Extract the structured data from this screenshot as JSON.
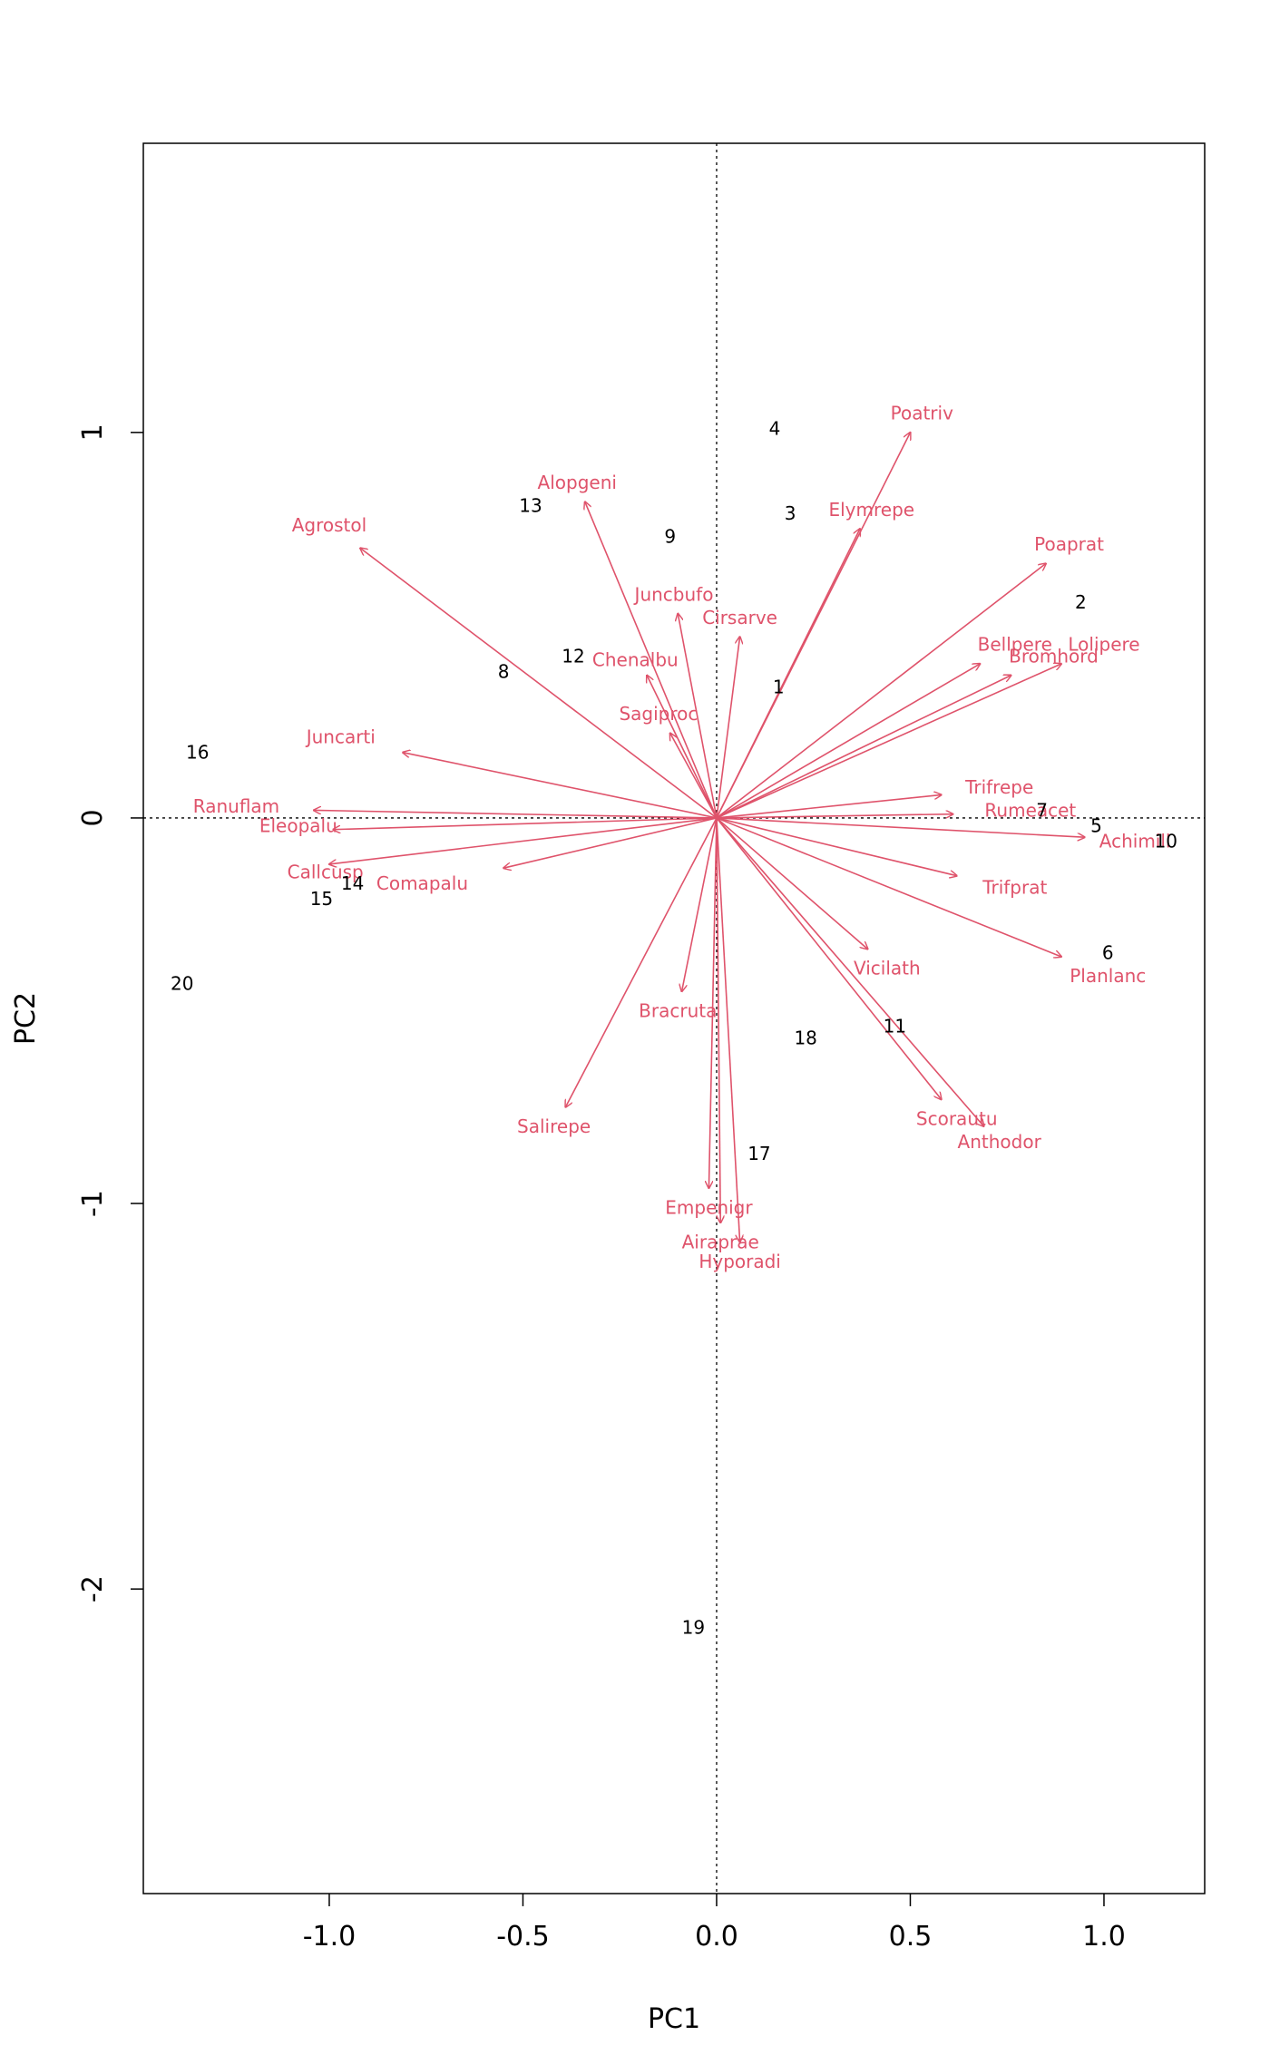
{
  "chart_data": {
    "type": "scatter",
    "subtype": "pca-biplot",
    "title": "",
    "xlabel": "PC1",
    "ylabel": "PC2",
    "xlim": [
      -1.48,
      1.26
    ],
    "ylim": [
      -2.79,
      1.75
    ],
    "xticks": [
      -1.0,
      -0.5,
      0.0,
      0.5,
      1.0
    ],
    "xtick_labels": [
      "-1.0",
      "-0.5",
      "0.0",
      "0.5",
      "1.0"
    ],
    "yticks": [
      -2,
      -1,
      0,
      1
    ],
    "ytick_labels": [
      "-2",
      "-1",
      "0",
      "1"
    ],
    "reference_lines": "dotted lines at x = 0 and y = 0",
    "grid": false,
    "legend": "none",
    "colors": {
      "species": "#df536b",
      "sites": "#000000",
      "axes": "#000000"
    },
    "sites": [
      {
        "label": "1",
        "x": 0.16,
        "y": 0.34
      },
      {
        "label": "2",
        "x": 0.94,
        "y": 0.56
      },
      {
        "label": "3",
        "x": 0.19,
        "y": 0.79
      },
      {
        "label": "4",
        "x": 0.15,
        "y": 1.01
      },
      {
        "label": "5",
        "x": 0.98,
        "y": -0.02
      },
      {
        "label": "6",
        "x": 1.01,
        "y": -0.35
      },
      {
        "label": "7",
        "x": 0.84,
        "y": 0.02
      },
      {
        "label": "8",
        "x": -0.55,
        "y": 0.38
      },
      {
        "label": "9",
        "x": -0.12,
        "y": 0.73
      },
      {
        "label": "10",
        "x": 1.16,
        "y": -0.06
      },
      {
        "label": "11",
        "x": 0.46,
        "y": -0.54
      },
      {
        "label": "12",
        "x": -0.37,
        "y": 0.42
      },
      {
        "label": "13",
        "x": -0.48,
        "y": 0.81
      },
      {
        "label": "14",
        "x": -0.94,
        "y": -0.17
      },
      {
        "label": "15",
        "x": -1.02,
        "y": -0.21
      },
      {
        "label": "16",
        "x": -1.34,
        "y": 0.17
      },
      {
        "label": "17",
        "x": 0.11,
        "y": -0.87
      },
      {
        "label": "18",
        "x": 0.23,
        "y": -0.57
      },
      {
        "label": "19",
        "x": -0.06,
        "y": -2.1
      },
      {
        "label": "20",
        "x": -1.38,
        "y": -0.43
      }
    ],
    "species": [
      {
        "label": "Achimill",
        "x": 0.95,
        "y": -0.05,
        "lx": 1.08,
        "ly": -0.06
      },
      {
        "label": "Agrostol",
        "x": -0.92,
        "y": 0.7,
        "lx": -1.0,
        "ly": 0.76
      },
      {
        "label": "Airaprae",
        "x": 0.01,
        "y": -1.05,
        "lx": 0.01,
        "ly": -1.1
      },
      {
        "label": "Alopgeni",
        "x": -0.34,
        "y": 0.82,
        "lx": -0.36,
        "ly": 0.87
      },
      {
        "label": "Anthodor",
        "x": 0.69,
        "y": -0.8,
        "lx": 0.73,
        "ly": -0.84
      },
      {
        "label": "Bellpere",
        "x": 0.68,
        "y": 0.4,
        "lx": 0.77,
        "ly": 0.45
      },
      {
        "label": "Bromhord",
        "x": 0.76,
        "y": 0.37,
        "lx": 0.87,
        "ly": 0.42
      },
      {
        "label": "Chenalbu",
        "x": -0.18,
        "y": 0.37,
        "lx": -0.21,
        "ly": 0.41
      },
      {
        "label": "Cirsarve",
        "x": 0.06,
        "y": 0.47,
        "lx": 0.06,
        "ly": 0.52
      },
      {
        "label": "Comapalu",
        "x": -0.55,
        "y": -0.13,
        "lx": -0.76,
        "ly": -0.17
      },
      {
        "label": "Elymrepe",
        "x": 0.37,
        "y": 0.75,
        "lx": 0.4,
        "ly": 0.8
      },
      {
        "label": "Empenigr",
        "x": -0.02,
        "y": -0.96,
        "lx": -0.02,
        "ly": -1.01
      },
      {
        "label": "Hyporadi",
        "x": 0.06,
        "y": -1.1,
        "lx": 0.06,
        "ly": -1.15
      },
      {
        "label": "Juncarti",
        "x": -0.81,
        "y": 0.17,
        "lx": -0.97,
        "ly": 0.21
      },
      {
        "label": "Juncbufo",
        "x": -0.1,
        "y": 0.53,
        "lx": -0.11,
        "ly": 0.58
      },
      {
        "label": "Lolipere",
        "x": 0.89,
        "y": 0.4,
        "lx": 1.0,
        "ly": 0.45
      },
      {
        "label": "Planlanc",
        "x": 0.89,
        "y": -0.36,
        "lx": 1.01,
        "ly": -0.41
      },
      {
        "label": "Poaprat",
        "x": 0.85,
        "y": 0.66,
        "lx": 0.91,
        "ly": 0.71
      },
      {
        "label": "Poatriv",
        "x": 0.5,
        "y": 1.0,
        "lx": 0.53,
        "ly": 1.05
      },
      {
        "label": "Ranuflam",
        "x": -1.04,
        "y": 0.02,
        "lx": -1.24,
        "ly": 0.03
      },
      {
        "label": "Rumeacet",
        "x": 0.61,
        "y": 0.01,
        "lx": 0.81,
        "ly": 0.02
      },
      {
        "label": "Sagiproc",
        "x": -0.12,
        "y": 0.22,
        "lx": -0.15,
        "ly": 0.27
      },
      {
        "label": "Salirepe",
        "x": -0.39,
        "y": -0.75,
        "lx": -0.42,
        "ly": -0.8
      },
      {
        "label": "Scorautu",
        "x": 0.58,
        "y": -0.73,
        "lx": 0.62,
        "ly": -0.78
      },
      {
        "label": "Trifprat",
        "x": 0.62,
        "y": -0.15,
        "lx": 0.77,
        "ly": -0.18
      },
      {
        "label": "Trifrepe",
        "x": 0.58,
        "y": 0.06,
        "lx": 0.73,
        "ly": 0.08
      },
      {
        "label": "Vicilath",
        "x": 0.39,
        "y": -0.34,
        "lx": 0.44,
        "ly": -0.39
      },
      {
        "label": "Bracruta",
        "x": -0.09,
        "y": -0.45,
        "lx": -0.1,
        "ly": -0.5
      },
      {
        "label": "Callcusp",
        "x": -1.0,
        "y": -0.12,
        "lx": -1.01,
        "ly": -0.14
      },
      {
        "label": "Eleopalu",
        "x": -0.99,
        "y": -0.03,
        "lx": -1.08,
        "ly": -0.02
      }
    ]
  }
}
